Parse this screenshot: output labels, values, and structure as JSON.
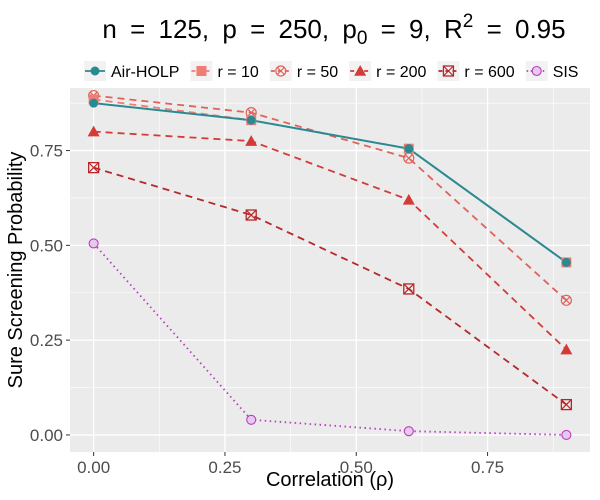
{
  "chart_data": {
    "type": "line",
    "title": {
      "n_label": "n",
      "n_value": "125",
      "p_label": "p",
      "p_value": "250",
      "p0_base": "p",
      "p0_sub": "0",
      "p0_value": "9",
      "r2_base": "R",
      "r2_sup": "2",
      "r2_value": "0.95",
      "equals": "=",
      "separator": ","
    },
    "xlabel_prefix": "Correlation (",
    "xlabel_symbol": "ρ",
    "xlabel_suffix": ")",
    "ylabel": "Sure Screening Probability",
    "xlim": [
      -0.045,
      0.945
    ],
    "ylim": [
      -0.045,
      0.915
    ],
    "x_ticks": [
      0.0,
      0.25,
      0.5,
      0.75
    ],
    "x_tick_labels": [
      "0.00",
      "0.25",
      "0.50",
      "0.75"
    ],
    "y_ticks": [
      0.0,
      0.25,
      0.5,
      0.75
    ],
    "y_tick_labels": [
      "0.00",
      "0.25",
      "0.50",
      "0.75"
    ],
    "grid": true,
    "legend_position": "top",
    "x": [
      0.0,
      0.3,
      0.6,
      0.9
    ],
    "series": [
      {
        "name": "Air-HOLP",
        "values": [
          0.875,
          0.83,
          0.755,
          0.455
        ],
        "color": "#2a8a92",
        "dash": "solid",
        "marker": "circle"
      },
      {
        "name": "r = 10",
        "values": [
          0.885,
          0.83,
          0.755,
          0.455
        ],
        "color": "#f07d74",
        "dash": "dashed",
        "marker": "square"
      },
      {
        "name": "r = 50",
        "values": [
          0.895,
          0.85,
          0.73,
          0.355
        ],
        "color": "#e0625a",
        "dash": "dashed",
        "marker": "circle-x"
      },
      {
        "name": "r = 200",
        "values": [
          0.8,
          0.775,
          0.62,
          0.225
        ],
        "color": "#d43b37",
        "dash": "dashed",
        "marker": "triangle"
      },
      {
        "name": "r = 600",
        "values": [
          0.705,
          0.58,
          0.385,
          0.08
        ],
        "color": "#b5292b",
        "dash": "dashed",
        "marker": "square-x"
      },
      {
        "name": "SIS",
        "values": [
          0.505,
          0.04,
          0.01,
          0.0
        ],
        "color": "#b83cbc",
        "dash": "dotted",
        "marker": "circle-open"
      }
    ]
  }
}
